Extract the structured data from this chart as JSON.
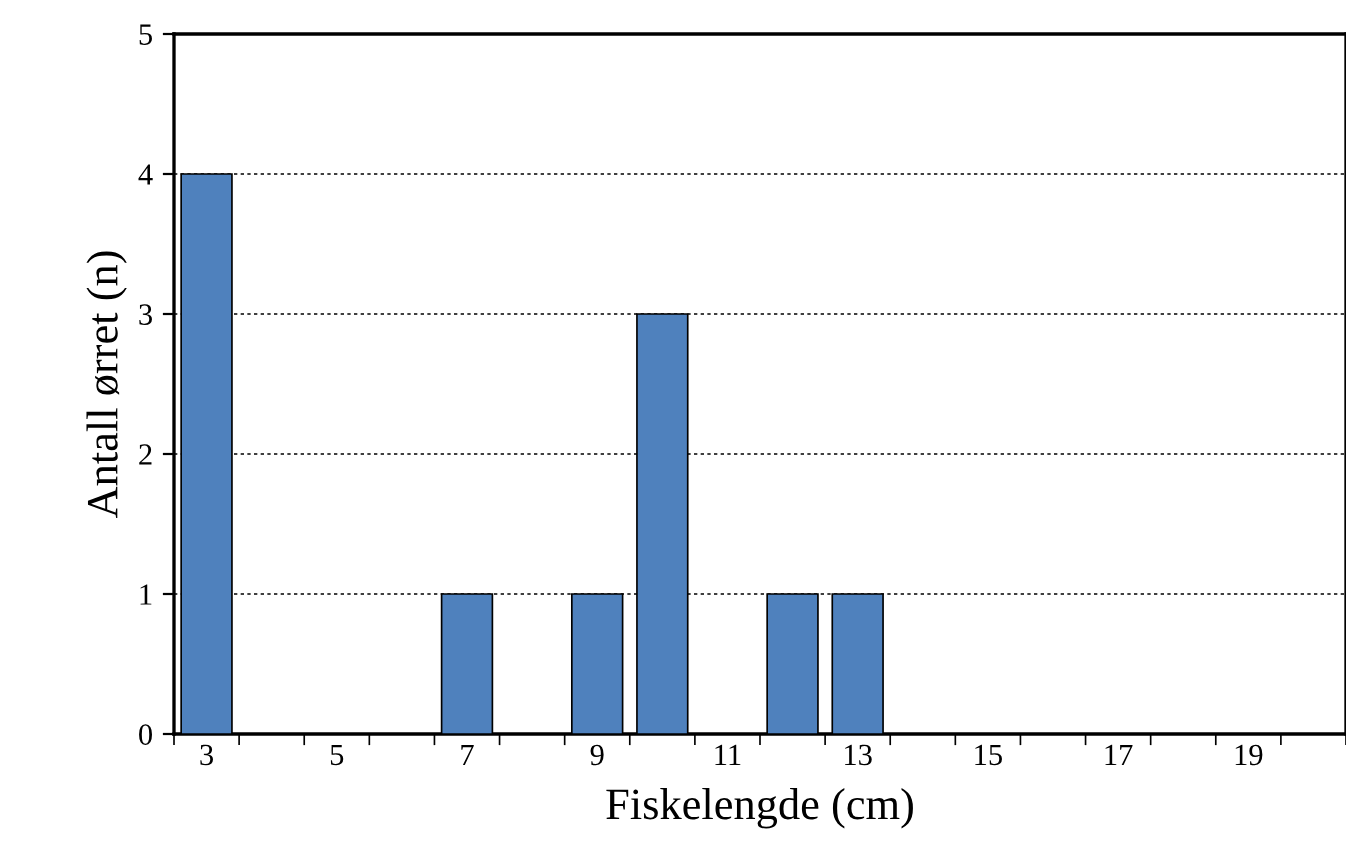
{
  "chart_data": {
    "type": "bar",
    "xlabel": "Fiskelengde (cm)",
    "ylabel": "Antall ørret (n)",
    "categories": [
      "3",
      null,
      "5",
      null,
      "7",
      null,
      "9",
      null,
      "11",
      null,
      "13",
      null,
      "15",
      null,
      "17",
      null,
      "19",
      null
    ],
    "values": [
      4,
      0,
      0,
      0,
      1,
      0,
      1,
      3,
      0,
      1,
      1,
      0,
      0,
      0,
      0,
      0,
      0,
      0
    ],
    "color": "#4f81bd",
    "ylim": [
      0,
      5
    ],
    "yticks": [
      0,
      1,
      2,
      3,
      4,
      5
    ],
    "grid": "y"
  }
}
